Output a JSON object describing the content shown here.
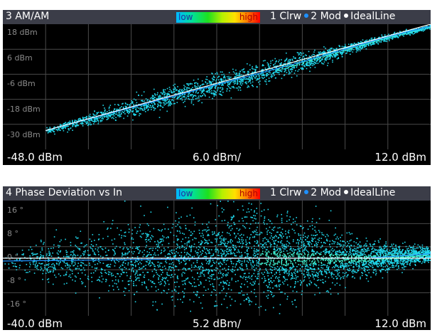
{
  "panels": [
    {
      "title": "3 AM/AM",
      "gradient_low": "low",
      "gradient_high": "high",
      "legend": {
        "trace1": "1 Clrw",
        "trace2": "2 Mod",
        "ideal": "IdealLine"
      },
      "y_ticks": [
        "18 dBm",
        "6 dBm",
        "-6 dBm",
        "-18 dBm",
        "-30 dBm"
      ],
      "x_start": "-48.0 dBm",
      "x_div": "6.0 dBm/",
      "x_end": "12.0 dBm"
    },
    {
      "title": "4 Phase Deviation vs In",
      "gradient_low": "low",
      "gradient_high": "high",
      "legend": {
        "trace1": "1 Clrw",
        "trace2": "2 Mod",
        "ideal": "IdealLine"
      },
      "y_ticks": [
        "16 °",
        "8 °",
        "0 °",
        "-8 °",
        "-16 °"
      ],
      "x_start": "-40.0 dBm",
      "x_div": "5.2 dBm/",
      "x_end": "12.0 dBm"
    }
  ],
  "colors": {
    "background": "#000000",
    "titlebar": "#3b3d48",
    "grid": "#4a4a4a",
    "scatter": "#20d8ec",
    "trace_mod": "#1e90ff",
    "ideal_line": "#ffffff"
  },
  "chart_data": [
    {
      "type": "scatter",
      "title": "3 AM/AM",
      "x_range": [
        -48.0,
        12.0
      ],
      "x_div": 6.0,
      "y_ticks": [
        18,
        6,
        -6,
        -18,
        -30
      ],
      "ylim": [
        -36,
        24
      ],
      "ideal_line": [
        [
          -42,
          -27
        ],
        [
          12,
          24
        ]
      ],
      "scatter_trend": [
        [
          -42,
          -27
        ],
        [
          -30,
          -16
        ],
        [
          -18,
          -5
        ],
        [
          -6,
          6
        ],
        [
          0,
          12
        ],
        [
          6,
          18
        ],
        [
          12,
          23
        ]
      ],
      "scatter_spread_db": [
        1.0,
        4.0,
        5.0,
        3.5,
        2.2,
        1.2,
        0.8
      ],
      "grid": true
    },
    {
      "type": "scatter",
      "title": "4 Phase Deviation vs In",
      "x_range": [
        -40.0,
        12.0
      ],
      "x_div": 5.2,
      "y_ticks": [
        16,
        8,
        0,
        -8,
        -16
      ],
      "ylim": [
        -20,
        20
      ],
      "ideal_line": [
        [
          -40,
          0
        ],
        [
          12,
          0
        ]
      ],
      "scatter_trend": [
        [
          -40,
          -1
        ],
        [
          -24,
          -0.5
        ],
        [
          -10,
          0
        ],
        [
          4,
          0
        ],
        [
          12,
          1.5
        ]
      ],
      "scatter_spread_deg": [
        3,
        12,
        15,
        5,
        2
      ],
      "grid": true
    }
  ]
}
